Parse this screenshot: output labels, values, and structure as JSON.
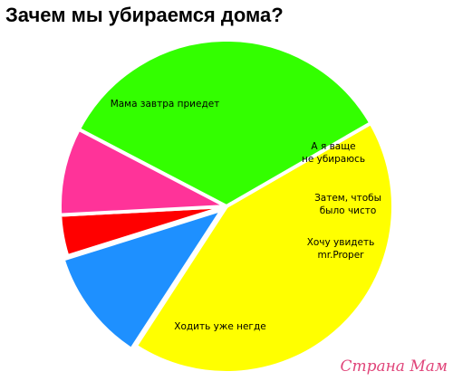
{
  "chart_data": {
    "type": "pie",
    "title": "Зачем мы убираемся дома?",
    "categories": [
      "Мама завтра приедет",
      "А я ваще не убираюсь",
      "Затем, чтобы было чисто",
      "Хочу увидеть mr.Proper",
      "Ходить уже негде"
    ],
    "values": [
      42.5,
      11,
      4,
      8.5,
      34
    ],
    "label_lines": [
      [
        "Мама завтра приедет"
      ],
      [
        "А я ваще",
        "не убираюсь"
      ],
      [
        "Затем, чтобы",
        "было чисто"
      ],
      [
        "Хочу увидеть",
        "mr.Proper"
      ],
      [
        "Ходить уже негде"
      ]
    ],
    "colors": [
      "#ffff00",
      "#1e90ff",
      "#ff0000",
      "#ff3399",
      "#33ff00"
    ],
    "legend": "none"
  },
  "watermark": "Страна Мам"
}
